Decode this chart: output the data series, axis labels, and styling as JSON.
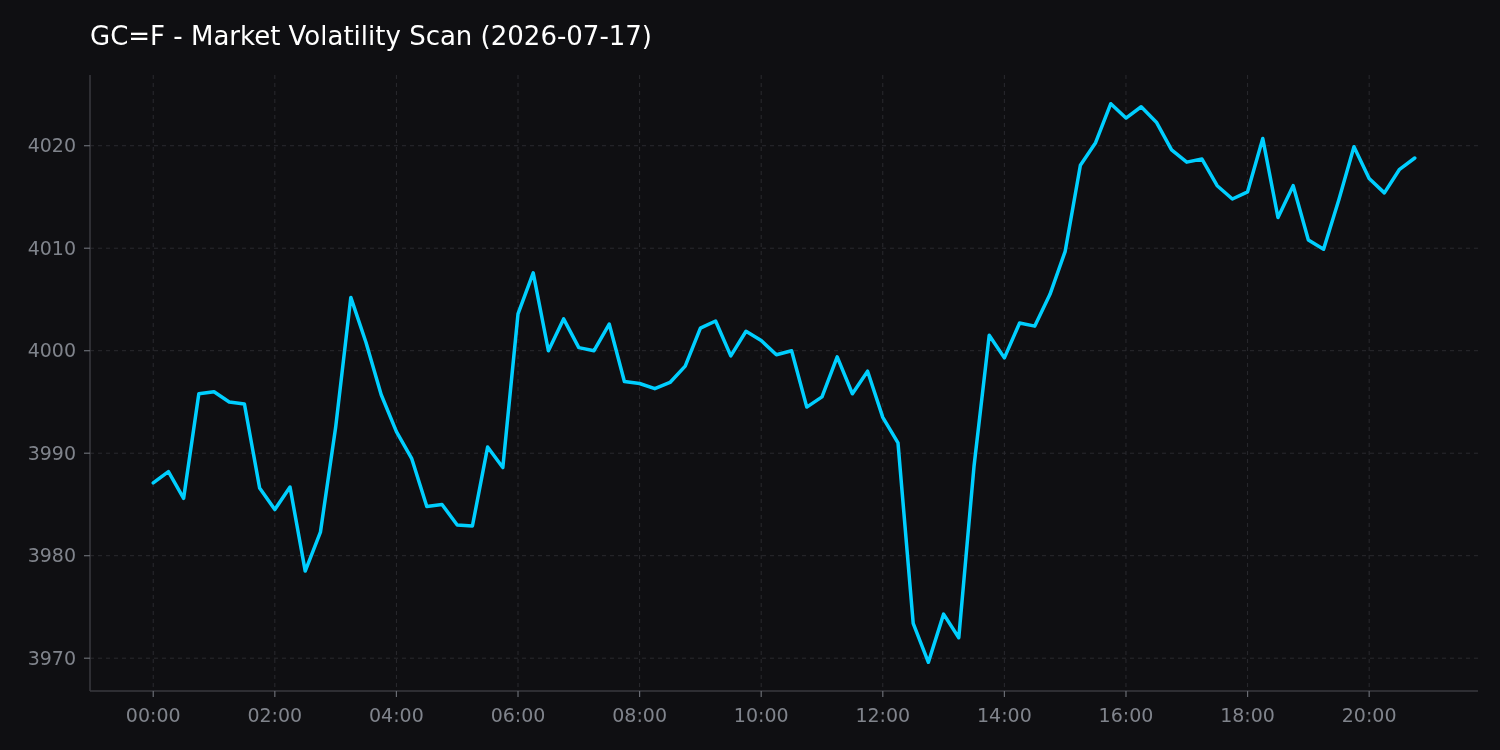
{
  "chart_data": {
    "type": "line",
    "title": "GC=F - Market Volatility Scan (2026-07-17)",
    "x": [
      0,
      0.25,
      0.5,
      0.75,
      1,
      1.25,
      1.5,
      1.75,
      2,
      2.25,
      2.5,
      2.75,
      3,
      3.25,
      3.5,
      3.75,
      4,
      4.25,
      4.5,
      4.75,
      5,
      5.25,
      5.5,
      5.75,
      6,
      6.25,
      6.5,
      6.75,
      7,
      7.25,
      7.5,
      7.75,
      8,
      8.25,
      8.5,
      8.75,
      9,
      9.25,
      9.5,
      9.75,
      10,
      10.25,
      10.5,
      10.75,
      11,
      11.25,
      11.5,
      11.75,
      12,
      12.25,
      12.5,
      12.75,
      13,
      13.25,
      13.5,
      13.75,
      14,
      14.25,
      14.5,
      14.75,
      15,
      15.25,
      15.5,
      15.75,
      16,
      16.25,
      16.5,
      16.75,
      17,
      17.25,
      17.5,
      17.75,
      18,
      18.25,
      18.5,
      18.75,
      19,
      19.25,
      19.5,
      19.75,
      20,
      20.25,
      20.5,
      20.75
    ],
    "values": [
      3987.1,
      3988.2,
      3985.6,
      3995.8,
      3996.0,
      3995.0,
      3994.8,
      3986.6,
      3984.5,
      3986.7,
      3978.5,
      3982.3,
      3992.5,
      4005.2,
      4000.8,
      3995.7,
      3992.1,
      3989.5,
      3984.8,
      3985.0,
      3983.0,
      3982.9,
      3990.6,
      3988.6,
      4003.6,
      4007.6,
      4000.0,
      4003.1,
      4000.3,
      4000.0,
      4002.6,
      3997.0,
      3996.8,
      3996.3,
      3996.9,
      3998.5,
      4002.2,
      4002.9,
      3999.5,
      4001.9,
      4001.0,
      3999.6,
      4000.0,
      3994.5,
      3995.5,
      3999.4,
      3995.8,
      3998.0,
      3993.5,
      3991.0,
      3973.4,
      3969.6,
      3974.3,
      3972.0,
      3988.7,
      4001.5,
      3999.3,
      4002.7,
      4002.4,
      4005.5,
      4009.7,
      4018.1,
      4020.3,
      4024.1,
      4022.7,
      4023.8,
      4022.3,
      4019.6,
      4018.4,
      4018.7,
      4016.1,
      4014.8,
      4015.5,
      4020.7,
      4013.0,
      4016.1,
      4010.8,
      4009.9,
      4014.7,
      4019.9,
      4016.8,
      4015.4,
      4017.7,
      4018.8
    ],
    "color": "#00cfff",
    "xlim": [
      -1.04,
      21.79
    ],
    "xticks": [
      {
        "value": 0,
        "label": "00:00"
      },
      {
        "value": 2,
        "label": "02:00"
      },
      {
        "value": 4,
        "label": "04:00"
      },
      {
        "value": 6,
        "label": "06:00"
      },
      {
        "value": 8,
        "label": "08:00"
      },
      {
        "value": 10,
        "label": "10:00"
      },
      {
        "value": 12,
        "label": "12:00"
      },
      {
        "value": 14,
        "label": "14:00"
      },
      {
        "value": 16,
        "label": "16:00"
      },
      {
        "value": 18,
        "label": "18:00"
      },
      {
        "value": 20,
        "label": "20:00"
      }
    ],
    "ylim": [
      3966.8,
      4026.9
    ],
    "yticks": [
      3970,
      3980,
      3990,
      4000,
      4010,
      4020
    ],
    "grid": true
  }
}
